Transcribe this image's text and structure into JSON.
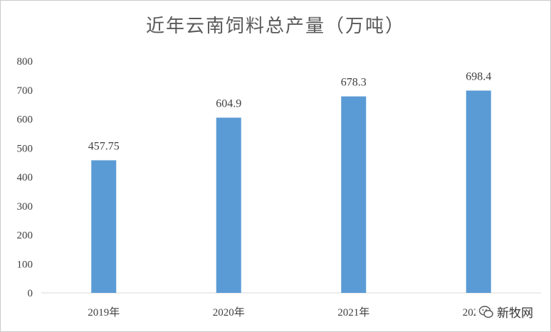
{
  "chart_data": {
    "type": "bar",
    "title": "近年云南饲料总产量（万吨）",
    "categories": [
      "2019年",
      "2020年",
      "2021年",
      "2022年"
    ],
    "values": [
      457.75,
      604.9,
      678.3,
      698.4
    ],
    "value_labels": [
      "457.75",
      "604.9",
      "678.3",
      "698.4"
    ],
    "ylim": [
      0,
      800
    ],
    "yticks": [
      0,
      100,
      200,
      300,
      400,
      500,
      600,
      700,
      800
    ],
    "bar_color": "#5b9bd5",
    "grid": false,
    "legend": "none"
  },
  "watermark": {
    "text": "新牧网",
    "icon": "wechat-icon"
  }
}
